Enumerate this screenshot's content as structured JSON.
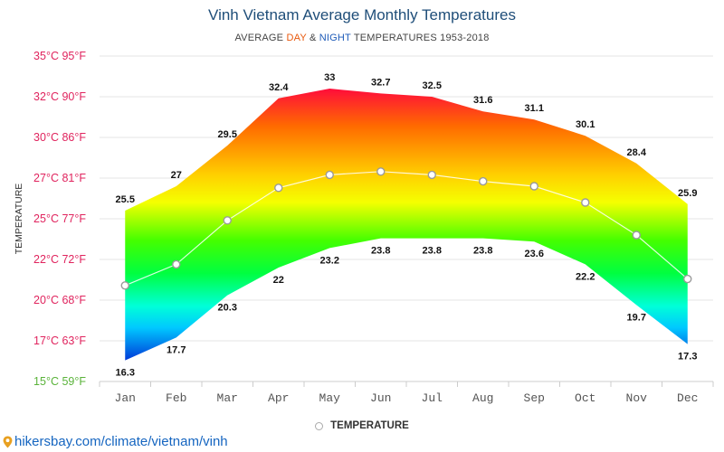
{
  "title": "Vinh Vietnam Average Monthly Temperatures",
  "subtitle": {
    "prefix": "AVERAGE ",
    "day_word": "DAY",
    "mid": " & ",
    "night_word": "NIGHT",
    "suffix": " TEMPERATURES 1953-2018",
    "day_color": "#e8580c",
    "night_color": "#1e5bb8"
  },
  "legend": {
    "label": "TEMPERATURE",
    "marker": "hollow-circle"
  },
  "source": {
    "text": "hikersbay.com/climate/vietnam/vinh",
    "icon": "map-pin-icon",
    "color": "#1565c0"
  },
  "chart_data": {
    "type": "area",
    "categories": [
      "Jan",
      "Feb",
      "Mar",
      "Apr",
      "May",
      "Jun",
      "Jul",
      "Aug",
      "Sep",
      "Oct",
      "Nov",
      "Dec"
    ],
    "series": [
      {
        "name": "TEMPERATURE",
        "values": [
          20.9,
          22.2,
          24.9,
          26.9,
          27.7,
          27.9,
          27.7,
          27.3,
          27.0,
          26.0,
          24.0,
          21.3
        ]
      }
    ],
    "day": [
      25.5,
      27,
      29.5,
      32.4,
      33,
      32.7,
      32.5,
      31.6,
      31.1,
      30.1,
      28.4,
      25.9
    ],
    "night": [
      16.3,
      17.7,
      20.3,
      22,
      23.2,
      23.8,
      23.8,
      23.8,
      23.6,
      22.2,
      19.7,
      17.3
    ],
    "ylabel": "TEMPERATURE",
    "ylim": [
      15,
      35
    ],
    "yticks": [
      {
        "value": 35,
        "label": "35°C 95°F",
        "color": "#e0245e"
      },
      {
        "value": 32.5,
        "label": "32°C 90°F",
        "color": "#e0245e"
      },
      {
        "value": 30,
        "label": "30°C 86°F",
        "color": "#e0245e"
      },
      {
        "value": 27.5,
        "label": "27°C 81°F",
        "color": "#e0245e"
      },
      {
        "value": 25,
        "label": "25°C 77°F",
        "color": "#e0245e"
      },
      {
        "value": 22.5,
        "label": "22°C 72°F",
        "color": "#e0245e"
      },
      {
        "value": 20,
        "label": "20°C 68°F",
        "color": "#e0245e"
      },
      {
        "value": 17.5,
        "label": "17°C 63°F",
        "color": "#e0245e"
      },
      {
        "value": 15,
        "label": "15°C 59°F",
        "color": "#5ab33a"
      }
    ],
    "grid": true,
    "legend_position": "bottom-center"
  }
}
